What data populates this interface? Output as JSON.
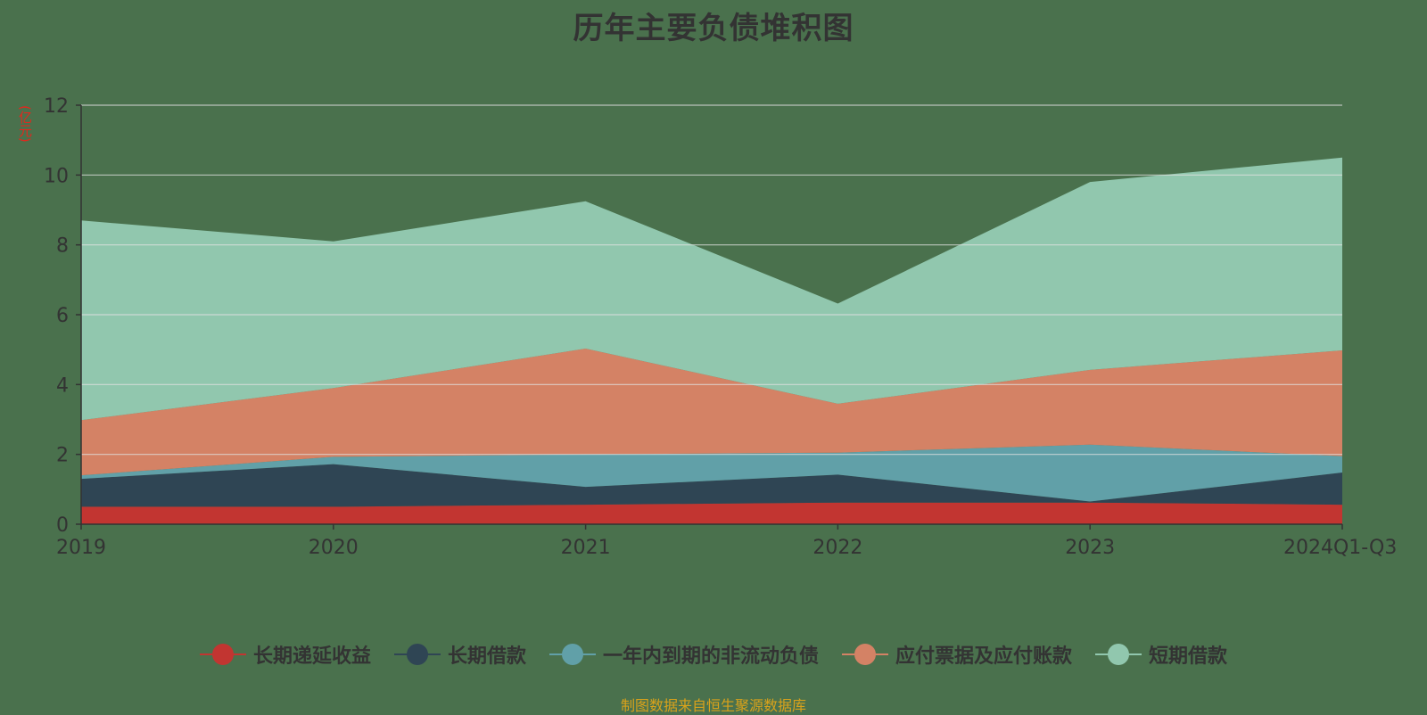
{
  "title": "历年主要负债堆积图",
  "y_unit_label": "(亿元)",
  "source": "制图数据来自恒生聚源数据库",
  "colors": {
    "background": "#4a714d",
    "axis": "#333333",
    "grid": "#e0e0e0"
  },
  "legend": [
    {
      "label": "长期递延收益",
      "color": "#c23531"
    },
    {
      "label": "长期借款",
      "color": "#2f4554"
    },
    {
      "label": "一年内到期的非流动负债",
      "color": "#61a0a8"
    },
    {
      "label": "应付票据及应付账款",
      "color": "#d48265"
    },
    {
      "label": "短期借款",
      "color": "#91c7ae"
    }
  ],
  "chart_data": {
    "type": "area",
    "stacked": true,
    "title": "历年主要负债堆积图",
    "xlabel": "",
    "ylabel": "(亿元)",
    "ylim": [
      0,
      12
    ],
    "yticks": [
      0,
      2,
      4,
      6,
      8,
      10,
      12
    ],
    "grid": true,
    "legend_position": "bottom",
    "categories": [
      "2019",
      "2020",
      "2021",
      "2022",
      "2023",
      "2024Q1-Q3"
    ],
    "series": [
      {
        "name": "长期递延收益",
        "color": "#c23531",
        "values": [
          0.5,
          0.5,
          0.56,
          0.62,
          0.62,
          0.56
        ]
      },
      {
        "name": "长期借款",
        "color": "#2f4554",
        "values": [
          0.8,
          1.22,
          0.51,
          0.8,
          0.03,
          0.92
        ]
      },
      {
        "name": "一年内到期的非流动负债",
        "color": "#61a0a8",
        "values": [
          0.1,
          0.21,
          0.93,
          0.63,
          1.63,
          0.47
        ]
      },
      {
        "name": "应付票据及应付账款",
        "color": "#d48265",
        "values": [
          1.58,
          1.97,
          3.03,
          1.4,
          2.14,
          3.03
        ]
      },
      {
        "name": "短期借款",
        "color": "#91c7ae",
        "values": [
          5.72,
          4.2,
          4.22,
          2.87,
          5.38,
          5.52
        ]
      }
    ]
  }
}
